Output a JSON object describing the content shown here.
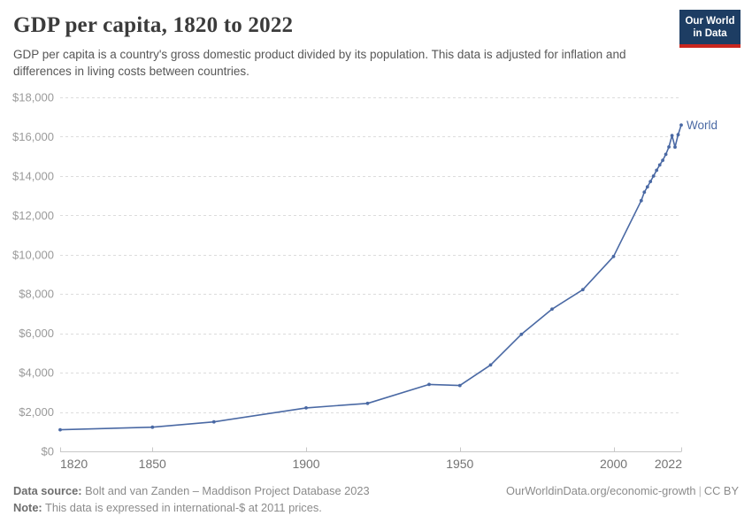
{
  "header": {
    "title": "GDP per capita, 1820 to 2022",
    "subtitle": "GDP per capita is a country's gross domestic product divided by its population. This data is adjusted for inflation and differences in living costs between countries.",
    "logo": {
      "line1": "Our World",
      "line2": "in Data",
      "bg_color": "#1d3d63",
      "accent_color": "#c9261e"
    }
  },
  "footer": {
    "source_label": "Data source:",
    "source_text": "Bolt and van Zanden – Maddison Project Database 2023",
    "note_label": "Note:",
    "note_text": "This data is expressed in international-$ at 2011 prices.",
    "url": "OurWorldinData.org/economic-growth",
    "divider": "|",
    "license": "CC BY"
  },
  "chart_data": {
    "type": "line",
    "title": "GDP per capita, 1820 to 2022",
    "xlabel": "",
    "ylabel": "",
    "xlim": [
      1820,
      2022
    ],
    "ylim": [
      0,
      18000
    ],
    "xticks": [
      1820,
      1850,
      1900,
      1950,
      2000,
      2022
    ],
    "yticks": [
      0,
      2000,
      4000,
      6000,
      8000,
      10000,
      12000,
      14000,
      16000,
      18000
    ],
    "y_tick_prefix": "$",
    "grid": "horizontal-dashed",
    "legend_position": "end-of-line-label",
    "series": [
      {
        "name": "World",
        "color": "#4a69a4",
        "points": [
          [
            1820,
            1100
          ],
          [
            1850,
            1230
          ],
          [
            1870,
            1500
          ],
          [
            1900,
            2210
          ],
          [
            1920,
            2440
          ],
          [
            1940,
            3400
          ],
          [
            1950,
            3350
          ],
          [
            1960,
            4390
          ],
          [
            1970,
            5950
          ],
          [
            1980,
            7230
          ],
          [
            1990,
            8220
          ],
          [
            2000,
            9910
          ],
          [
            2009,
            12750
          ],
          [
            2010,
            13180
          ],
          [
            2011,
            13450
          ],
          [
            2012,
            13720
          ],
          [
            2013,
            14000
          ],
          [
            2014,
            14290
          ],
          [
            2015,
            14560
          ],
          [
            2016,
            14800
          ],
          [
            2017,
            15100
          ],
          [
            2018,
            15480
          ],
          [
            2019,
            16060
          ],
          [
            2020,
            15470
          ],
          [
            2021,
            16100
          ],
          [
            2022,
            16590
          ]
        ]
      }
    ]
  }
}
